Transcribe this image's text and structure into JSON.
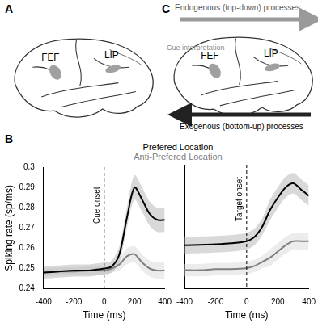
{
  "chart_data": [
    {
      "type": "line",
      "y_label": "Spiking rate (sp/ms)",
      "x_label": "Time (ms)",
      "x": [
        -400,
        -300,
        -200,
        -100,
        -50,
        0,
        50,
        100,
        150,
        200,
        250,
        300,
        350,
        400
      ],
      "series": [
        {
          "name": "Prefered Location",
          "color": "#000000",
          "line_style": "solid",
          "values": [
            0.248,
            0.2485,
            0.249,
            0.249,
            0.2495,
            0.25,
            0.251,
            0.257,
            0.275,
            0.29,
            0.284,
            0.277,
            0.274,
            0.274
          ],
          "error": [
            0.003,
            0.003,
            0.003,
            0.003,
            0.003,
            0.003,
            0.003,
            0.004,
            0.005,
            0.006,
            0.006,
            0.006,
            0.006,
            0.006
          ]
        },
        {
          "name": "Anti-Prefered Location",
          "color": "#808080",
          "line_style": "solid",
          "values": [
            0.248,
            0.2485,
            0.2485,
            0.249,
            0.249,
            0.249,
            0.25,
            0.252,
            0.256,
            0.257,
            0.253,
            0.25,
            0.249,
            0.249
          ],
          "error": [
            0.002,
            0.002,
            0.002,
            0.002,
            0.002,
            0.002,
            0.002,
            0.003,
            0.004,
            0.004,
            0.004,
            0.004,
            0.004,
            0.004
          ]
        }
      ],
      "xlim": [
        -400,
        400
      ],
      "xticks": [
        -400,
        -200,
        0,
        200,
        400
      ],
      "ylim": [
        0.24,
        0.3
      ],
      "yticks": [
        0.24,
        0.25,
        0.26,
        0.27,
        0.28,
        0.29,
        0.3
      ],
      "grid": false,
      "annotations": [
        {
          "x": 0,
          "text": "Cue onset"
        }
      ]
    },
    {
      "type": "line",
      "x_label": "Time (ms)",
      "x": [
        -400,
        -300,
        -200,
        -100,
        0,
        50,
        100,
        150,
        200,
        250,
        300,
        350,
        400
      ],
      "series": [
        {
          "name": "Prefered Location",
          "color": "#000000",
          "line_style": "solid",
          "values": [
            0.261,
            0.2612,
            0.2615,
            0.262,
            0.263,
            0.265,
            0.27,
            0.278,
            0.284,
            0.289,
            0.291,
            0.288,
            0.285
          ],
          "error": [
            0.004,
            0.004,
            0.004,
            0.004,
            0.004,
            0.004,
            0.004,
            0.005,
            0.005,
            0.005,
            0.005,
            0.005,
            0.005
          ]
        },
        {
          "name": "Anti-Prefered Location",
          "color": "#808080",
          "line_style": "solid",
          "values": [
            0.249,
            0.249,
            0.2495,
            0.2495,
            0.25,
            0.251,
            0.253,
            0.255,
            0.258,
            0.261,
            0.263,
            0.263,
            0.263
          ],
          "error": [
            0.003,
            0.003,
            0.003,
            0.003,
            0.003,
            0.003,
            0.003,
            0.004,
            0.004,
            0.004,
            0.004,
            0.004,
            0.004
          ]
        }
      ],
      "xlim": [
        -400,
        400
      ],
      "xticks": [
        -400,
        -200,
        0,
        200,
        400
      ],
      "ylim": [
        0.24,
        0.3
      ],
      "yticks": [
        0.24,
        0.25,
        0.26,
        0.27,
        0.28,
        0.29,
        0.3
      ],
      "grid": false,
      "tick_labels": "x",
      "annotations": [
        {
          "x": 0,
          "text": "Target onset"
        }
      ]
    }
  ],
  "figure": {
    "panel_labels": [
      "A",
      "B",
      "C"
    ],
    "panel_a": {
      "areas": [
        "FEF",
        "LIP"
      ]
    },
    "panel_c": {
      "areas": [
        "FEF",
        "LIP"
      ],
      "cue_label": "Cue interpretation",
      "top_arrow": "Endogenous (top-down) processes",
      "bottom_arrow": "Exogenous (bottom-up) processes"
    }
  }
}
